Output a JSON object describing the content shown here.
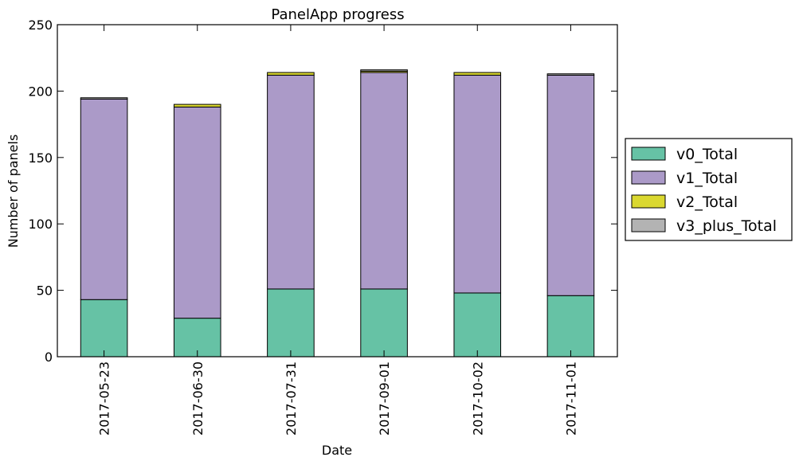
{
  "chart_data": {
    "type": "bar",
    "stacked": true,
    "title": "PanelApp progress",
    "xlabel": "Date",
    "ylabel": "Number of panels",
    "ylim": [
      0,
      250
    ],
    "yticks": [
      0,
      50,
      100,
      150,
      200,
      250
    ],
    "grid": false,
    "legend_position": "right, outside plot",
    "categories": [
      "2017-05-23",
      "2017-06-30",
      "2017-07-31",
      "2017-09-01",
      "2017-10-02",
      "2017-11-01"
    ],
    "series": [
      {
        "name": "v0_Total",
        "color": "#66c2a5",
        "values": [
          43,
          29,
          51,
          51,
          48,
          46
        ]
      },
      {
        "name": "v1_Total",
        "color": "#ab9ac8",
        "values": [
          151,
          159,
          161,
          163,
          164,
          166
        ]
      },
      {
        "name": "v2_Total",
        "color": "#dad830",
        "values": [
          0,
          2,
          2,
          1,
          2,
          0
        ]
      },
      {
        "name": "v3_plus_Total",
        "color": "#b3b3b3",
        "values": [
          1,
          0,
          0,
          1,
          0,
          1
        ]
      }
    ]
  }
}
